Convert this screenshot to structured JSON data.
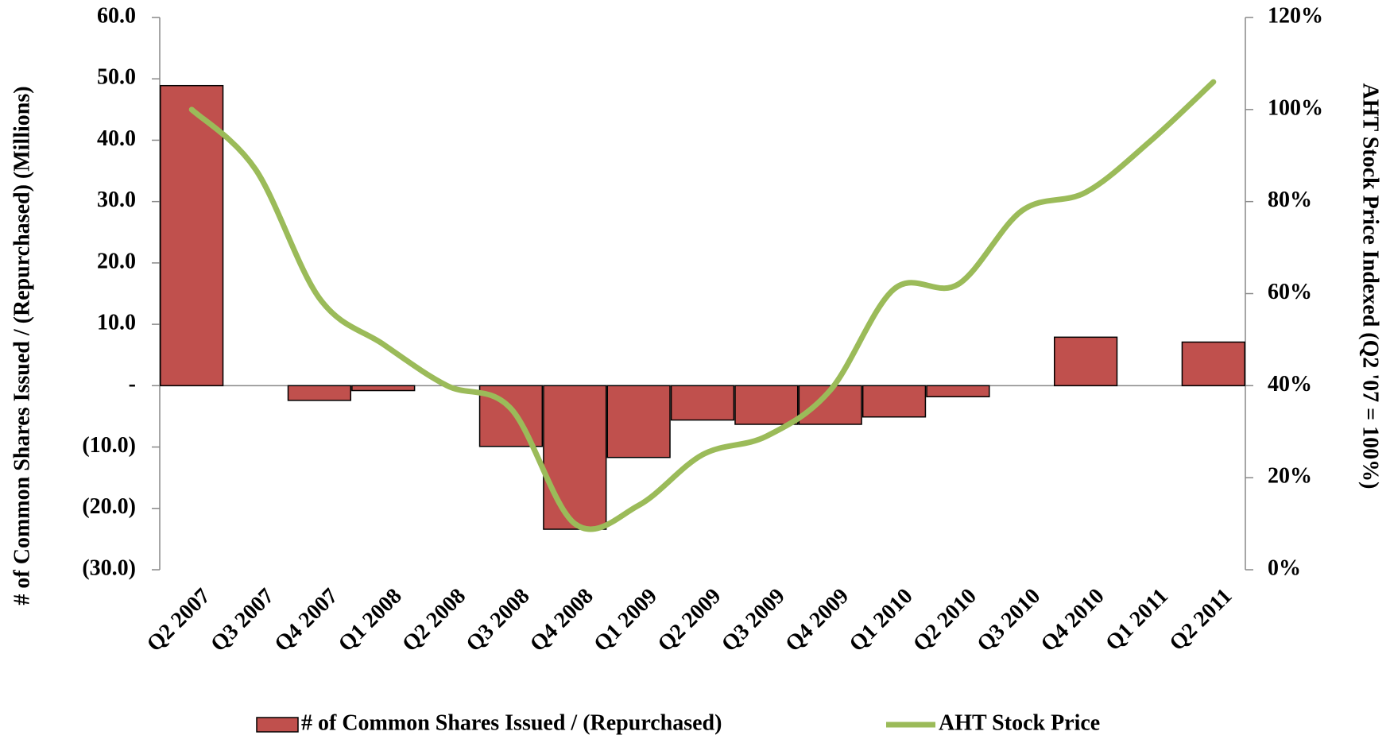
{
  "chart_data": {
    "type": "bar_line",
    "categories": [
      "Q2 2007",
      "Q3 2007",
      "Q4 2007",
      "Q1 2008",
      "Q2 2008",
      "Q3 2008",
      "Q4 2008",
      "Q1 2009",
      "Q2 2009",
      "Q3 2009",
      "Q4 2009",
      "Q1 2010",
      "Q2 2010",
      "Q3 2010",
      "Q4 2010",
      "Q1 2011",
      "Q2 2011"
    ],
    "series": [
      {
        "name": "# of Common Shares Issued / (Repurchased)",
        "type": "bar",
        "color": "#c0504d",
        "values": [
          48.9,
          0,
          -2.4,
          -0.8,
          0,
          -9.9,
          -23.4,
          -11.7,
          -5.6,
          -6.3,
          -6.3,
          -5.1,
          -1.8,
          0,
          7.9,
          0,
          7.1
        ]
      },
      {
        "name": "AHT Stock Price",
        "type": "line",
        "axis": "y2",
        "color": "#9bbb59",
        "values": [
          100,
          87,
          59,
          49,
          40,
          35,
          10,
          14,
          25,
          29,
          39,
          61,
          62,
          78,
          82,
          93,
          106
        ]
      }
    ],
    "ylabel": "# of Common Shares Issued / (Repurchased) (Millions)",
    "y2label": "AHT Stock Price Indexed (Q2 '07 = 100%)",
    "ylim": [
      -30,
      60
    ],
    "yticks": [
      {
        "value": -30,
        "label": "(30.0)"
      },
      {
        "value": -20,
        "label": "(20.0)"
      },
      {
        "value": -10,
        "label": "(10.0)"
      },
      {
        "value": 0,
        "label": "-"
      },
      {
        "value": 10,
        "label": "10.0"
      },
      {
        "value": 20,
        "label": "20.0"
      },
      {
        "value": 30,
        "label": "30.0"
      },
      {
        "value": 40,
        "label": "40.0"
      },
      {
        "value": 50,
        "label": "50.0"
      },
      {
        "value": 60,
        "label": "60.0"
      }
    ],
    "y2lim": [
      0,
      120
    ],
    "y2ticks": [
      {
        "value": 0,
        "label": "0%"
      },
      {
        "value": 20,
        "label": "20%"
      },
      {
        "value": 40,
        "label": "40%"
      },
      {
        "value": 60,
        "label": "60%"
      },
      {
        "value": 80,
        "label": "80%"
      },
      {
        "value": 100,
        "label": "100%"
      },
      {
        "value": 120,
        "label": "120%"
      }
    ],
    "legend": "bottom"
  }
}
